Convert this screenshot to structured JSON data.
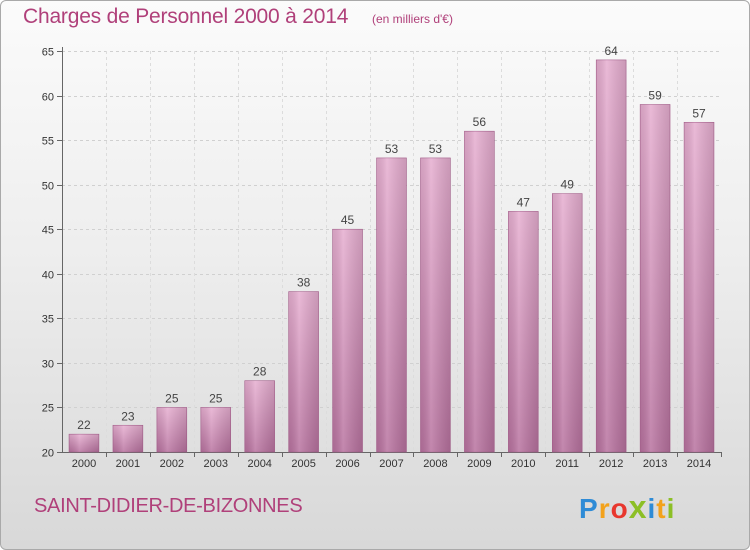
{
  "header": {
    "title": "Charges de Personnel 2000 à 2014",
    "subtitle": "(en milliers d'€)"
  },
  "footer": {
    "commune": "SAINT-DIDIER-DE-BIZONNES",
    "logo_letters": [
      "P",
      "r",
      "o",
      "x",
      "i",
      "t",
      "i"
    ],
    "logo_colors": [
      "#2e8bd6",
      "#f3a21b",
      "#e8372e",
      "#8cbf26",
      "#2e8bd6",
      "#f3a21b",
      "#8cbf26"
    ]
  },
  "chart_data": {
    "type": "bar",
    "title": "Charges de Personnel 2000 à 2014",
    "subtitle": "(en milliers d'€)",
    "categories": [
      "2000",
      "2001",
      "2002",
      "2003",
      "2004",
      "2005",
      "2006",
      "2007",
      "2008",
      "2009",
      "2010",
      "2011",
      "2012",
      "2013",
      "2014"
    ],
    "values": [
      22,
      23,
      25,
      25,
      28,
      38,
      45,
      53,
      53,
      56,
      47,
      49,
      64,
      59,
      57
    ],
    "xlabel": "",
    "ylabel": "",
    "ylim": [
      20,
      65
    ],
    "yticks": [
      20,
      25,
      30,
      35,
      40,
      45,
      50,
      55,
      60,
      65
    ],
    "grid": true,
    "bar_color": "#d9a0c4",
    "bar_color_dark": "#b7709e"
  }
}
